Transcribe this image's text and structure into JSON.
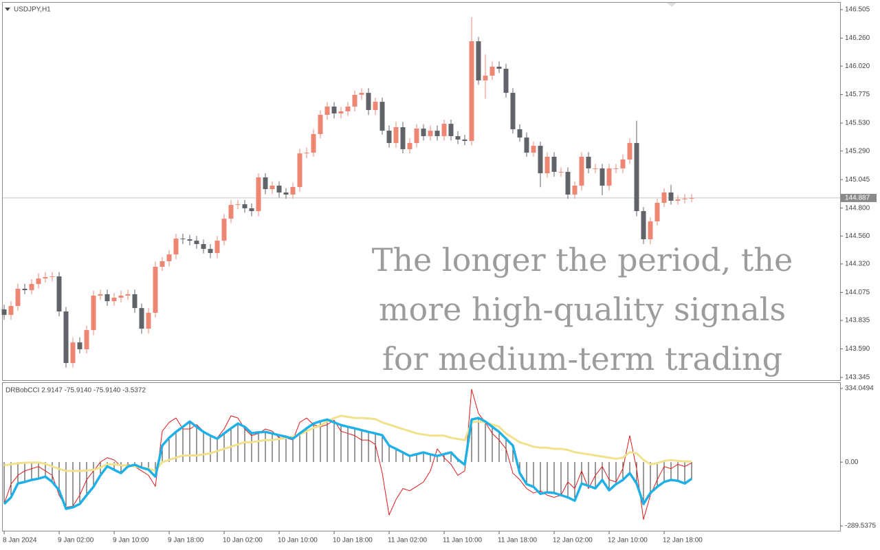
{
  "chart_data": [
    {
      "type": "candlestick",
      "title": "USDJPY,H1",
      "up_color": "#ee8674",
      "down_color": "#606368",
      "open": [
        143.93,
        143.882,
        143.959,
        144.107,
        144.095,
        144.148,
        144.195,
        144.207,
        144.213,
        143.912,
        143.469,
        143.646,
        143.587,
        143.752,
        144.048,
        144.06,
        144.0,
        144.03,
        144.048,
        144.06,
        143.941,
        143.764,
        143.9,
        144.296,
        144.343,
        144.402,
        144.538,
        144.532,
        144.52,
        144.491,
        144.449,
        144.414,
        144.52,
        144.709,
        144.827,
        144.833,
        144.798,
        144.774,
        145.064,
        144.963,
        144.993,
        144.934,
        144.916,
        144.981,
        145.27,
        145.276,
        145.436,
        145.601,
        145.672,
        145.613,
        145.631,
        145.672,
        145.773,
        145.79,
        145.643,
        145.713,
        145.465,
        145.359,
        145.495,
        145.306,
        145.359,
        145.483,
        145.418,
        145.465,
        145.418,
        145.524,
        145.418,
        145.389,
        145.377,
        146.233,
        145.897,
        145.938,
        146.015,
        145.997,
        145.79,
        145.477,
        145.406,
        145.276,
        145.335,
        145.099,
        145.241,
        145.111,
        145.111,
        144.916,
        144.993,
        145.241,
        145.141,
        145.141,
        144.993,
        145.141,
        145.141,
        145.217,
        145.359,
        144.774,
        144.532,
        144.686,
        144.845,
        144.934,
        144.863,
        144.875,
        144.881
      ],
      "high": [
        143.97,
        144.0,
        144.15,
        144.15,
        144.19,
        144.24,
        144.25,
        144.25,
        144.25,
        143.95,
        143.69,
        143.69,
        143.79,
        144.09,
        144.1,
        144.1,
        144.07,
        144.09,
        144.1,
        144.1,
        143.98,
        143.94,
        144.34,
        144.38,
        144.44,
        144.58,
        144.58,
        144.57,
        144.56,
        144.53,
        144.49,
        144.56,
        144.75,
        144.87,
        144.87,
        144.87,
        144.84,
        145.1,
        145.1,
        145.03,
        145.03,
        144.97,
        145.02,
        145.31,
        145.32,
        145.48,
        145.64,
        145.71,
        145.71,
        145.67,
        145.71,
        145.81,
        145.83,
        145.83,
        145.75,
        145.75,
        145.51,
        145.54,
        145.54,
        145.4,
        145.52,
        145.52,
        145.51,
        145.51,
        145.56,
        145.56,
        145.46,
        145.43,
        146.44,
        146.27,
        146.12,
        146.06,
        146.06,
        146.04,
        145.83,
        145.52,
        145.45,
        145.37,
        145.37,
        145.28,
        145.28,
        145.15,
        145.15,
        145.03,
        145.28,
        145.28,
        145.18,
        145.18,
        145.18,
        145.18,
        145.26,
        145.4,
        145.55,
        144.81,
        144.72,
        144.88,
        144.97,
        145.0,
        144.91,
        144.92,
        144.92
      ],
      "low": [
        143.84,
        143.84,
        143.92,
        144.06,
        144.06,
        144.11,
        144.16,
        144.17,
        143.87,
        143.43,
        143.43,
        143.55,
        143.55,
        143.71,
        144.01,
        143.96,
        143.96,
        143.99,
        144.01,
        143.9,
        143.72,
        143.72,
        143.86,
        144.26,
        144.3,
        144.36,
        144.49,
        144.48,
        144.45,
        144.41,
        144.37,
        144.37,
        144.48,
        144.67,
        144.79,
        144.76,
        144.73,
        144.73,
        144.92,
        144.92,
        144.89,
        144.88,
        144.88,
        144.94,
        145.23,
        145.24,
        145.4,
        145.56,
        145.57,
        145.57,
        145.59,
        145.63,
        145.73,
        145.6,
        145.6,
        145.43,
        145.32,
        145.32,
        145.27,
        145.27,
        145.32,
        145.38,
        145.38,
        145.38,
        145.38,
        145.38,
        145.35,
        145.34,
        145.34,
        145.86,
        145.74,
        145.9,
        145.96,
        145.75,
        145.44,
        145.37,
        145.24,
        145.24,
        144.98,
        145.06,
        145.07,
        145.07,
        144.88,
        144.88,
        144.95,
        145.1,
        145.1,
        144.91,
        144.95,
        145.1,
        145.1,
        145.18,
        144.73,
        144.49,
        144.49,
        144.65,
        144.81,
        144.83,
        144.83,
        144.84,
        144.85
      ],
      "close": [
        143.882,
        143.959,
        144.107,
        144.095,
        144.148,
        144.195,
        144.207,
        144.213,
        143.912,
        143.469,
        143.646,
        143.587,
        143.752,
        144.048,
        144.06,
        144.0,
        144.03,
        144.048,
        144.06,
        143.941,
        143.764,
        143.9,
        144.296,
        144.343,
        144.402,
        144.538,
        144.532,
        144.52,
        144.491,
        144.449,
        144.414,
        144.52,
        144.709,
        144.827,
        144.833,
        144.798,
        144.774,
        145.064,
        144.963,
        144.993,
        144.934,
        144.916,
        144.981,
        145.27,
        145.276,
        145.436,
        145.601,
        145.672,
        145.613,
        145.631,
        145.672,
        145.773,
        145.79,
        145.643,
        145.713,
        145.465,
        145.359,
        145.495,
        145.306,
        145.359,
        145.483,
        145.418,
        145.465,
        145.418,
        145.524,
        145.418,
        145.389,
        145.377,
        146.233,
        145.897,
        145.938,
        146.015,
        145.997,
        145.79,
        145.477,
        145.406,
        145.276,
        145.335,
        145.099,
        145.241,
        145.111,
        145.111,
        144.916,
        144.993,
        145.241,
        145.141,
        145.141,
        144.993,
        145.141,
        145.141,
        145.217,
        145.359,
        144.774,
        144.532,
        144.686,
        144.845,
        144.934,
        144.863,
        144.875,
        144.881,
        144.887
      ],
      "ylim": [
        143.345,
        146.505
      ],
      "yticks": [
        146.505,
        {
          "value": 146.26,
          "label": "146.260"
        },
        {
          "value": 146.02,
          "label": "146.020"
        },
        145.775,
        {
          "value": 145.53,
          "label": "145.530"
        },
        {
          "value": 145.29,
          "label": "145.290"
        },
        145.045,
        {
          "value": 144.8,
          "label": "144.800"
        },
        {
          "value": 144.56,
          "label": "144.560"
        },
        {
          "value": 144.32,
          "label": "144.320"
        },
        144.075,
        143.835,
        {
          "value": 143.59,
          "label": "143.590"
        },
        143.345
      ],
      "xticks": [
        {
          "value": 0,
          "label": "8 Jan 2024"
        },
        {
          "value": 8,
          "label": "9 Jan 02:00"
        },
        {
          "value": 16,
          "label": "9 Jan 10:00"
        },
        {
          "value": 24,
          "label": "9 Jan 18:00"
        },
        {
          "value": 32,
          "label": "10 Jan 02:00"
        },
        {
          "value": 40,
          "label": "10 Jan 10:00"
        },
        {
          "value": 48,
          "label": "10 Jan 18:00"
        },
        {
          "value": 56,
          "label": "11 Jan 02:00"
        },
        {
          "value": 64,
          "label": "11 Jan 10:00"
        },
        {
          "value": 72,
          "label": "11 Jan 18:00"
        },
        {
          "value": 80,
          "label": "12 Jan 02:00"
        },
        {
          "value": 88,
          "label": "12 Jan 10:00"
        },
        {
          "value": 96,
          "label": "12 Jan 18:00"
        }
      ],
      "annotations": [
        "The longer the period, the",
        "more high-quality signals",
        "for medium-term trading"
      ]
    },
    {
      "type": "line",
      "title": "DRBobCCI 2.9147 -75.9140 -75.9140 -3.5372",
      "ylim": [
        -289.5375,
        334.0494
      ],
      "yticks": [
        334.0494,
        {
          "value": 0,
          "label": "0.00"
        },
        -289.5375
      ],
      "series": [
        {
          "color": "#1fb0e6",
          "width": 3.5,
          "histogram": true,
          "values": [
            -190,
            -160,
            -97,
            -90,
            -81,
            -75,
            -66,
            -90,
            -128,
            -212,
            -205,
            -190,
            -150,
            -112,
            -60,
            -19,
            -35,
            -50,
            -20,
            -12,
            -25,
            -34,
            -66,
            75,
            110,
            137,
            160,
            184,
            160,
            137,
            120,
            106,
            130,
            153,
            175,
            160,
            131,
            135,
            137,
            130,
            122,
            115,
            106,
            130,
            153,
            175,
            185,
            193,
            180,
            168,
            160,
            153,
            145,
            137,
            130,
            122,
            75,
            60,
            44,
            28,
            36,
            44,
            35,
            28,
            36,
            44,
            12,
            -12,
            193,
            200,
            184,
            160,
            137,
            106,
            75,
            -50,
            -100,
            -112,
            -144,
            -137,
            -140,
            -150,
            -160,
            -175,
            -97,
            -108,
            -119,
            -81,
            -128,
            -100,
            -81,
            -50,
            -97,
            -190,
            -140,
            -112,
            -90,
            -81,
            -85,
            -97,
            -75.914
          ]
        },
        {
          "color": "#f0e28c",
          "width": 3,
          "histogram": false,
          "values": [
            -15,
            -10,
            -5,
            -3,
            -2,
            -2,
            -8,
            -20,
            -30,
            -40,
            -40,
            -40,
            -38,
            -35,
            -25,
            -10,
            -10,
            -15,
            -15,
            -20,
            -25,
            -30,
            -40,
            0,
            10,
            20,
            30,
            30,
            30,
            35,
            40,
            50,
            60,
            70,
            80,
            90,
            90,
            95,
            100,
            100,
            105,
            110,
            115,
            125,
            140,
            155,
            165,
            185,
            200,
            210,
            205,
            200,
            200,
            198,
            195,
            180,
            170,
            160,
            150,
            140,
            130,
            125,
            120,
            120,
            120,
            110,
            105,
            100,
            180,
            185,
            180,
            170,
            160,
            130,
            110,
            90,
            80,
            70,
            65,
            65,
            60,
            60,
            55,
            45,
            40,
            35,
            30,
            25,
            20,
            15,
            20,
            45,
            40,
            10,
            -10,
            -5,
            5,
            10,
            5,
            3,
            2.9147
          ]
        },
        {
          "color": "#e01a1a",
          "width": 1,
          "histogram": false,
          "values": [
            -190,
            -100,
            -60,
            -40,
            -30,
            -20,
            -40,
            -60,
            -150,
            -205,
            -200,
            -150,
            -80,
            -40,
            0,
            20,
            10,
            -20,
            -10,
            -20,
            -40,
            -60,
            -110,
            140,
            180,
            200,
            150,
            150,
            170,
            140,
            120,
            110,
            150,
            210,
            200,
            150,
            120,
            130,
            150,
            140,
            110,
            110,
            100,
            180,
            200,
            170,
            160,
            170,
            190,
            140,
            130,
            120,
            100,
            100,
            80,
            -50,
            -240,
            -170,
            -120,
            -130,
            -110,
            -90,
            -40,
            60,
            20,
            -10,
            -60,
            -40,
            330,
            220,
            180,
            130,
            100,
            60,
            -50,
            -80,
            -120,
            -140,
            -130,
            -150,
            -160,
            -150,
            -90,
            -120,
            -40,
            -120,
            -60,
            -20,
            -80,
            -90,
            -30,
            120,
            -30,
            -260,
            -150,
            -80,
            -20,
            -30,
            -10,
            -20,
            -3.5372
          ]
        }
      ]
    }
  ]
}
